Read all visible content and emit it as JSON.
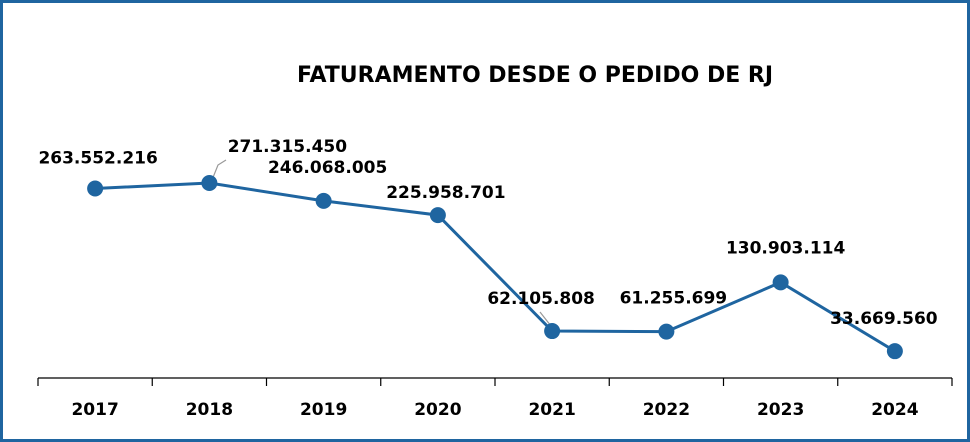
{
  "chart_data": {
    "type": "line",
    "title": "FATURAMENTO DESDE O PEDIDO DE RJ",
    "categories": [
      "2017",
      "2018",
      "2019",
      "2020",
      "2021",
      "2022",
      "2023",
      "2024"
    ],
    "values": [
      263552216,
      271315450,
      246068005,
      225958701,
      62105808,
      61255699,
      130903114,
      33669560
    ],
    "value_labels": [
      "263.552.216",
      "271.315.450",
      "246.068.005",
      "225.958.701",
      "62.105.808",
      "61.255.699",
      "130.903.114",
      "33.669.560"
    ],
    "color": "#1f65a0"
  }
}
